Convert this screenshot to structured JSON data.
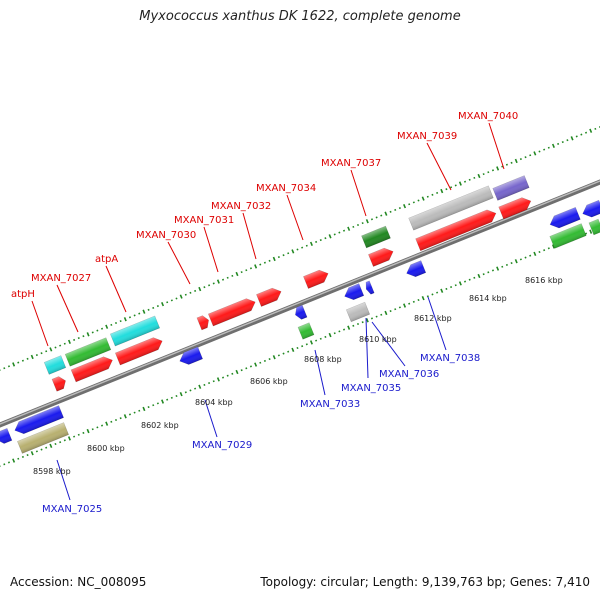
{
  "title": "Myxococcus xanthus DK 1622, complete genome",
  "footer": {
    "accession": "Accession: NC_008095",
    "summary": "Topology: circular; Length: 9,139,763 bp; Genes: 7,410"
  },
  "colors": {
    "backbone": "#888888",
    "forward_ticks": "#228822",
    "reverse_ticks": "#228822",
    "top_label": "#dd0000",
    "bottom_label": "#1a1acc",
    "red": "#ff1a1a",
    "blue": "#1a1aee",
    "green": "#33bb33",
    "cyan": "#22dddd",
    "gray": "#bbbbbb",
    "olive": "#b8b070",
    "purple": "#7766cc",
    "darkgreen": "#228822"
  },
  "kbp_labels": [
    "8598 kbp",
    "8600 kbp",
    "8602 kbp",
    "8604 kbp",
    "8606 kbp",
    "8608 kbp",
    "8610 kbp",
    "8612 kbp",
    "8614 kbp",
    "8616 kbp"
  ],
  "top_labels": [
    "atpH",
    "MXAN_7027",
    "atpA",
    "MXAN_7030",
    "MXAN_7031",
    "MXAN_7032",
    "MXAN_7034",
    "MXAN_7037",
    "MXAN_7039",
    "MXAN_7040"
  ],
  "bottom_labels": [
    "MXAN_7025",
    "MXAN_7029",
    "MXAN_7033",
    "MXAN_7035",
    "MXAN_7036",
    "MXAN_7038"
  ]
}
